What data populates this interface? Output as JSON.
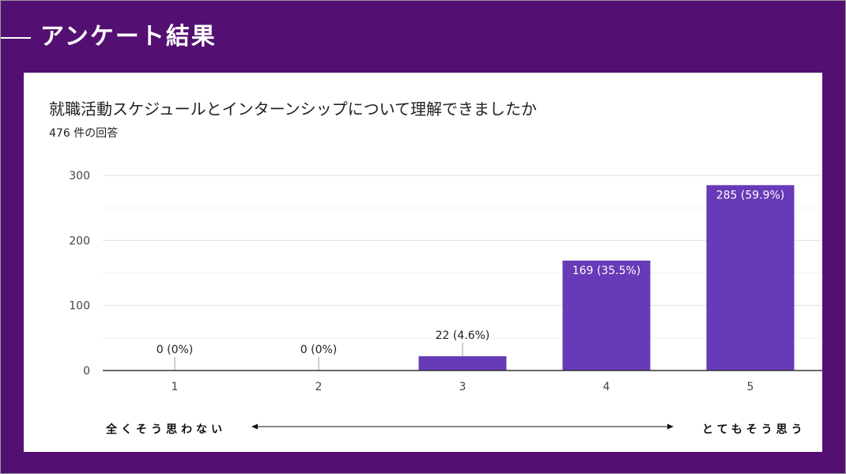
{
  "slide": {
    "title": "アンケート結果"
  },
  "card": {
    "question": "就職活動スケジュールとインターンシップについて理解できましたか",
    "responses": "476 件の回答"
  },
  "scale": {
    "left_label": "全くそう思わない",
    "right_label": "とてもそう思う"
  },
  "colors": {
    "background": "#531072",
    "bar": "#673ab7"
  },
  "chart_data": {
    "type": "bar",
    "categories": [
      "1",
      "2",
      "3",
      "4",
      "5"
    ],
    "values": [
      0,
      0,
      22,
      169,
      285
    ],
    "labels": [
      "0 (0%)",
      "0 (0%)",
      "22 (4.6%)",
      "169 (35.5%)",
      "285 (59.9%)"
    ],
    "yticks": [
      0,
      100,
      200,
      300
    ],
    "ylim": [
      0,
      300
    ],
    "grid": true
  }
}
